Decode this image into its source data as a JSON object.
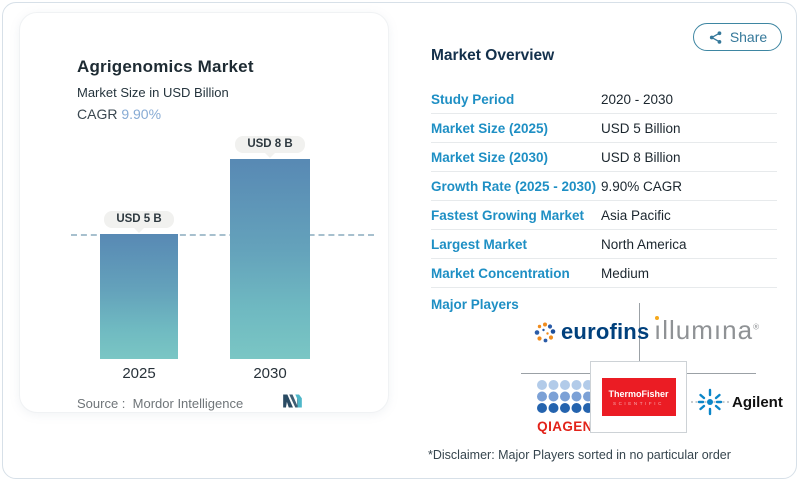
{
  "share": {
    "label": "Share"
  },
  "chart": {
    "title": "Agrigenomics Market",
    "subtitle": "Market Size in USD Billion",
    "cagr_label": "CAGR",
    "cagr_value": "9.90%",
    "bars": [
      {
        "year": "2025",
        "label": "USD 5 B"
      },
      {
        "year": "2030",
        "label": "USD 8 B"
      }
    ],
    "source_label": "Source :",
    "source_value": "Mordor Intelligence"
  },
  "chart_data": {
    "type": "bar",
    "categories": [
      "2025",
      "2030"
    ],
    "values": [
      5,
      8
    ],
    "value_labels": [
      "USD 5 B",
      "USD 8 B"
    ],
    "title": "Agrigenomics Market",
    "subtitle": "Market Size in USD Billion",
    "unit": "USD Billion",
    "cagr": "9.90%",
    "baseline_dashed_at": 5,
    "ylim": [
      0,
      9
    ],
    "grid": false,
    "legend": "none",
    "source": "Mordor Intelligence"
  },
  "overview": {
    "title": "Market Overview",
    "rows": [
      {
        "label": "Study Period",
        "value": "2020 - 2030"
      },
      {
        "label": "Market Size (2025)",
        "value": "USD 5 Billion"
      },
      {
        "label": "Market Size (2030)",
        "value": "USD 8 Billion"
      },
      {
        "label": "Growth Rate (2025 - 2030)",
        "value": "9.90% CAGR"
      },
      {
        "label": "Fastest Growing Market",
        "value": "Asia Pacific"
      },
      {
        "label": "Largest Market",
        "value": "North America"
      },
      {
        "label": "Market Concentration",
        "value": "Medium"
      }
    ],
    "major_players_label": "Major Players",
    "disclaimer": "*Disclaimer: Major Players sorted in no particular order"
  },
  "logos": {
    "eurofins": {
      "text": "eurofins"
    },
    "illumina": {
      "first": "ı",
      "rest": "llumına",
      "reg": "®"
    },
    "qiagen": {
      "text": "QIAGEN"
    },
    "thermofisher": {
      "line1": "ThermoFisher",
      "line2": "SCIENTIFIC"
    },
    "agilent": {
      "text": "Agilent"
    }
  },
  "icons": {
    "share": "share-nodes-icon",
    "mordor": "mordor-intelligence-logo"
  },
  "colors": {
    "accent_label": "#1E8FC4",
    "bar_top": "#5889B4",
    "bar_bottom": "#7AC6C4",
    "dashed_line": "#A7C0CE",
    "share_teal": "#35789A",
    "eurofins_navy": "#00407C",
    "illumina_gray": "#8F9295",
    "qiagen_red": "#E2231A",
    "thermofisher_red": "#EB1C24",
    "agilent_blue": "#0B86C8"
  }
}
